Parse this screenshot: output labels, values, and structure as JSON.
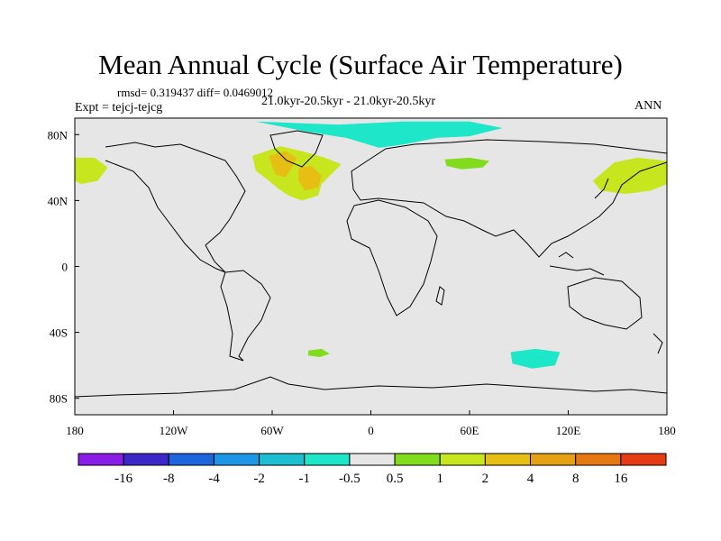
{
  "chart_data": {
    "type": "heatmap",
    "title": "Mean Annual Cycle (Surface Air Temperature)",
    "stats_text": "rmsd= 0.319437 diff= 0.0469012",
    "left_label": "Expt = tejcj-tejcg",
    "center_label": "21.0kyr-20.5kyr - 21.0kyr-20.5kyr",
    "right_label": "ANN",
    "xlim": [
      -180,
      180
    ],
    "ylim": [
      -90,
      90
    ],
    "x_ticks": [
      {
        "value": -180,
        "label": "180"
      },
      {
        "value": -120,
        "label": "120W"
      },
      {
        "value": -60,
        "label": "60W"
      },
      {
        "value": 0,
        "label": "0"
      },
      {
        "value": 60,
        "label": "60E"
      },
      {
        "value": 120,
        "label": "120E"
      },
      {
        "value": 180,
        "label": "180"
      }
    ],
    "y_ticks": [
      {
        "value": 80,
        "label": "80N"
      },
      {
        "value": 40,
        "label": "40N"
      },
      {
        "value": 0,
        "label": "0"
      },
      {
        "value": -40,
        "label": "40S"
      },
      {
        "value": -80,
        "label": "80S"
      }
    ],
    "colorbar": {
      "labels": [
        "-16",
        "-8",
        "-4",
        "-2",
        "-1",
        "-0.5",
        "0.5",
        "1",
        "2",
        "4",
        "8",
        "16"
      ],
      "colors": [
        "#8a1ee6",
        "#3c28c8",
        "#1e64dc",
        "#1e96e6",
        "#1ebed2",
        "#1ee6c8",
        "#e6e6e6",
        "#82dc1e",
        "#c8e61e",
        "#e6be14",
        "#e6a014",
        "#e67814",
        "#e63c14"
      ]
    },
    "background_color": "#e6e6e6",
    "anomaly_regions": [
      {
        "name": "north-atlantic-warm",
        "lon": -45,
        "lat": 55,
        "value": 1.5
      },
      {
        "name": "labrador-sea-core",
        "lon": -52,
        "lat": 58,
        "value": 3
      },
      {
        "name": "ne-atlantic-core",
        "lon": -38,
        "lat": 50,
        "value": 3
      },
      {
        "name": "east-asia-warm",
        "lon": 160,
        "lat": 57,
        "value": 1.2
      },
      {
        "name": "pacific-west-warm",
        "lon": -170,
        "lat": 60,
        "value": 1.2
      },
      {
        "name": "central-asia-warm",
        "lon": 60,
        "lat": 63,
        "value": 0.8
      },
      {
        "name": "arctic-cool",
        "lon": 10,
        "lat": 78,
        "value": -0.7
      },
      {
        "name": "southern-ocean-cool",
        "lon": 100,
        "lat": -58,
        "value": -0.7
      },
      {
        "name": "south-atlantic-warm",
        "lon": -32,
        "lat": -53,
        "value": 0.7
      }
    ]
  }
}
